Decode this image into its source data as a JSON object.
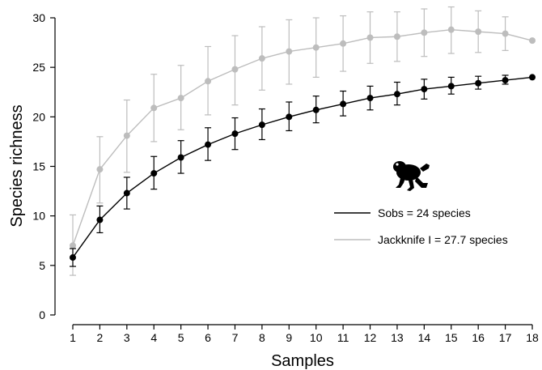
{
  "chart_data": {
    "type": "line",
    "xlabel": "Samples",
    "ylabel": "Species richness",
    "xlim": [
      1,
      18
    ],
    "ylim": [
      0,
      30
    ],
    "x_ticks": [
      1,
      2,
      3,
      4,
      5,
      6,
      7,
      8,
      9,
      10,
      11,
      12,
      13,
      14,
      15,
      16,
      17,
      18
    ],
    "y_ticks": [
      0,
      5,
      10,
      15,
      20,
      25,
      30
    ],
    "grid": false,
    "legend_position": "right",
    "x": [
      1,
      2,
      3,
      4,
      5,
      6,
      7,
      8,
      9,
      10,
      11,
      12,
      13,
      14,
      15,
      16,
      17,
      18
    ],
    "series": [
      {
        "name": "Jackknife I = 27.7 species",
        "color": "#bdbdbd",
        "values": [
          7.0,
          14.7,
          18.1,
          20.9,
          21.9,
          23.6,
          24.8,
          25.9,
          26.6,
          27.0,
          27.4,
          28.0,
          28.1,
          28.5,
          28.8,
          28.6,
          28.4,
          27.7
        ],
        "err_low": [
          4.0,
          11.3,
          14.4,
          17.5,
          18.7,
          20.2,
          21.2,
          22.7,
          23.3,
          24.0,
          24.6,
          25.4,
          25.6,
          26.1,
          26.4,
          26.5,
          26.7,
          null
        ],
        "err_high": [
          10.1,
          18.0,
          21.7,
          24.3,
          25.2,
          27.1,
          28.2,
          29.1,
          29.8,
          30.0,
          30.2,
          30.6,
          30.6,
          30.9,
          31.1,
          30.7,
          30.1,
          null
        ]
      },
      {
        "name": "Sobs = 24 species",
        "color": "#000000",
        "values": [
          5.8,
          9.6,
          12.3,
          14.3,
          15.9,
          17.2,
          18.3,
          19.2,
          20.0,
          20.7,
          21.3,
          21.9,
          22.3,
          22.8,
          23.1,
          23.4,
          23.7,
          24.0
        ],
        "err_low": [
          4.9,
          8.3,
          10.7,
          12.7,
          14.3,
          15.6,
          16.7,
          17.7,
          18.6,
          19.4,
          20.1,
          20.7,
          21.2,
          21.8,
          22.3,
          22.8,
          23.3,
          null
        ],
        "err_high": [
          6.7,
          11.0,
          13.9,
          16.0,
          17.6,
          18.9,
          19.9,
          20.8,
          21.5,
          22.1,
          22.6,
          23.1,
          23.5,
          23.8,
          24.0,
          24.1,
          24.2,
          null
        ]
      }
    ]
  },
  "legend": {
    "entries": [
      "Sobs = 24 species",
      "Jackknife I = 27.7 species"
    ],
    "icon": "frog-icon"
  }
}
